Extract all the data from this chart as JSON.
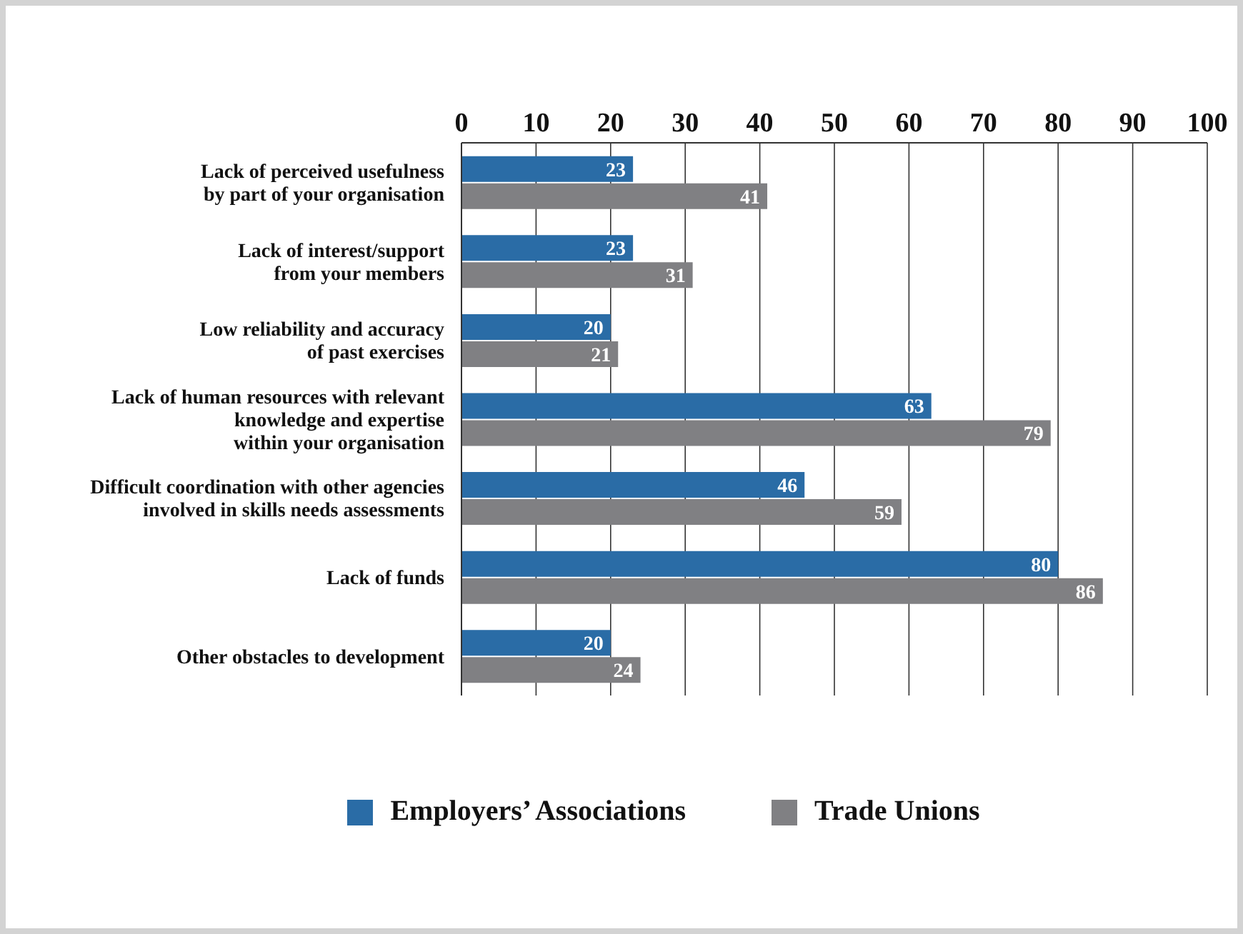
{
  "chart_data": {
    "type": "bar",
    "orientation": "horizontal",
    "categories": [
      "Lack of perceived usefulness\nby part of your organisation",
      "Lack of interest/support\nfrom your members",
      "Low reliability and accuracy\nof past exercises",
      "Lack of human resources with relevant\nknowledge and expertise\nwithin your organisation",
      "Difficult coordination with other agencies\ninvolved in skills needs assessments",
      "Lack of funds",
      "Other obstacles to development"
    ],
    "series": [
      {
        "name": "Employers’ Associations",
        "color": "#2a6ca6",
        "values": [
          23,
          23,
          20,
          63,
          46,
          80,
          20
        ]
      },
      {
        "name": "Trade Unions",
        "color": "#808083",
        "values": [
          41,
          31,
          21,
          79,
          59,
          86,
          24
        ]
      }
    ],
    "xlim": [
      0,
      100
    ],
    "xticks": [
      0,
      10,
      20,
      30,
      40,
      50,
      60,
      70,
      80,
      90,
      100
    ],
    "grid": "x",
    "legend": "bottom",
    "data_labels": true
  }
}
